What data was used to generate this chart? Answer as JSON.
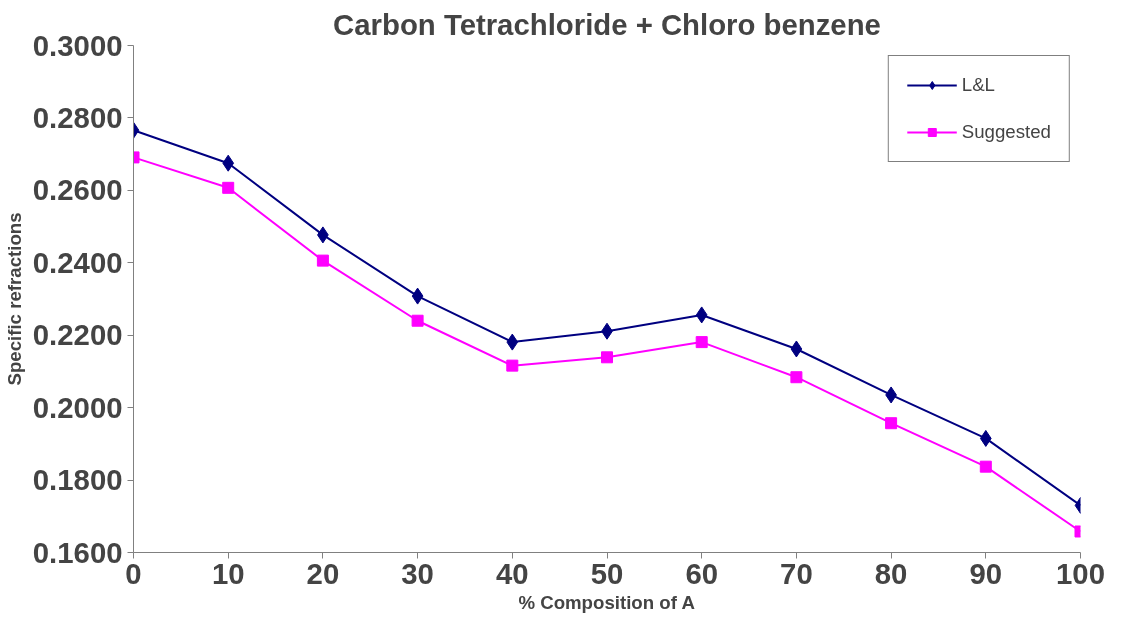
{
  "chart_data": {
    "type": "line",
    "title": "Carbon Tetrachloride + Chloro benzene",
    "xlabel": "% Composition of A",
    "ylabel": "Specific refractions",
    "x": [
      0,
      10,
      20,
      30,
      40,
      50,
      60,
      70,
      80,
      90,
      100
    ],
    "series": [
      {
        "name": "L&L",
        "color": "#000080",
        "marker": "diamond",
        "values": [
          0.2766,
          0.2675,
          0.2477,
          0.2308,
          0.2181,
          0.2211,
          0.2256,
          0.2162,
          0.2035,
          0.1915,
          0.173
        ]
      },
      {
        "name": "Suggested",
        "color": "#ff00ff",
        "marker": "square",
        "values": [
          0.2691,
          0.2607,
          0.2406,
          0.224,
          0.2116,
          0.2139,
          0.2181,
          0.2084,
          0.1957,
          0.1837,
          0.1658
        ]
      }
    ],
    "xlim": [
      0,
      100
    ],
    "xticks": [
      0,
      10,
      20,
      30,
      40,
      50,
      60,
      70,
      80,
      90,
      100
    ],
    "ylim": [
      0.16,
      0.3
    ],
    "yticks": [
      {
        "value": 0.16,
        "label": "0.1600"
      },
      {
        "value": 0.18,
        "label": "0.1800"
      },
      {
        "value": 0.2,
        "label": "0.2000"
      },
      {
        "value": 0.22,
        "label": "0.2200"
      },
      {
        "value": 0.24,
        "label": "0.2400"
      },
      {
        "value": 0.26,
        "label": "0.2600"
      },
      {
        "value": 0.28,
        "label": "0.2800"
      },
      {
        "value": 0.3,
        "label": "0.3000"
      }
    ],
    "grid": false,
    "legend": "top right",
    "line_style": "solid"
  }
}
